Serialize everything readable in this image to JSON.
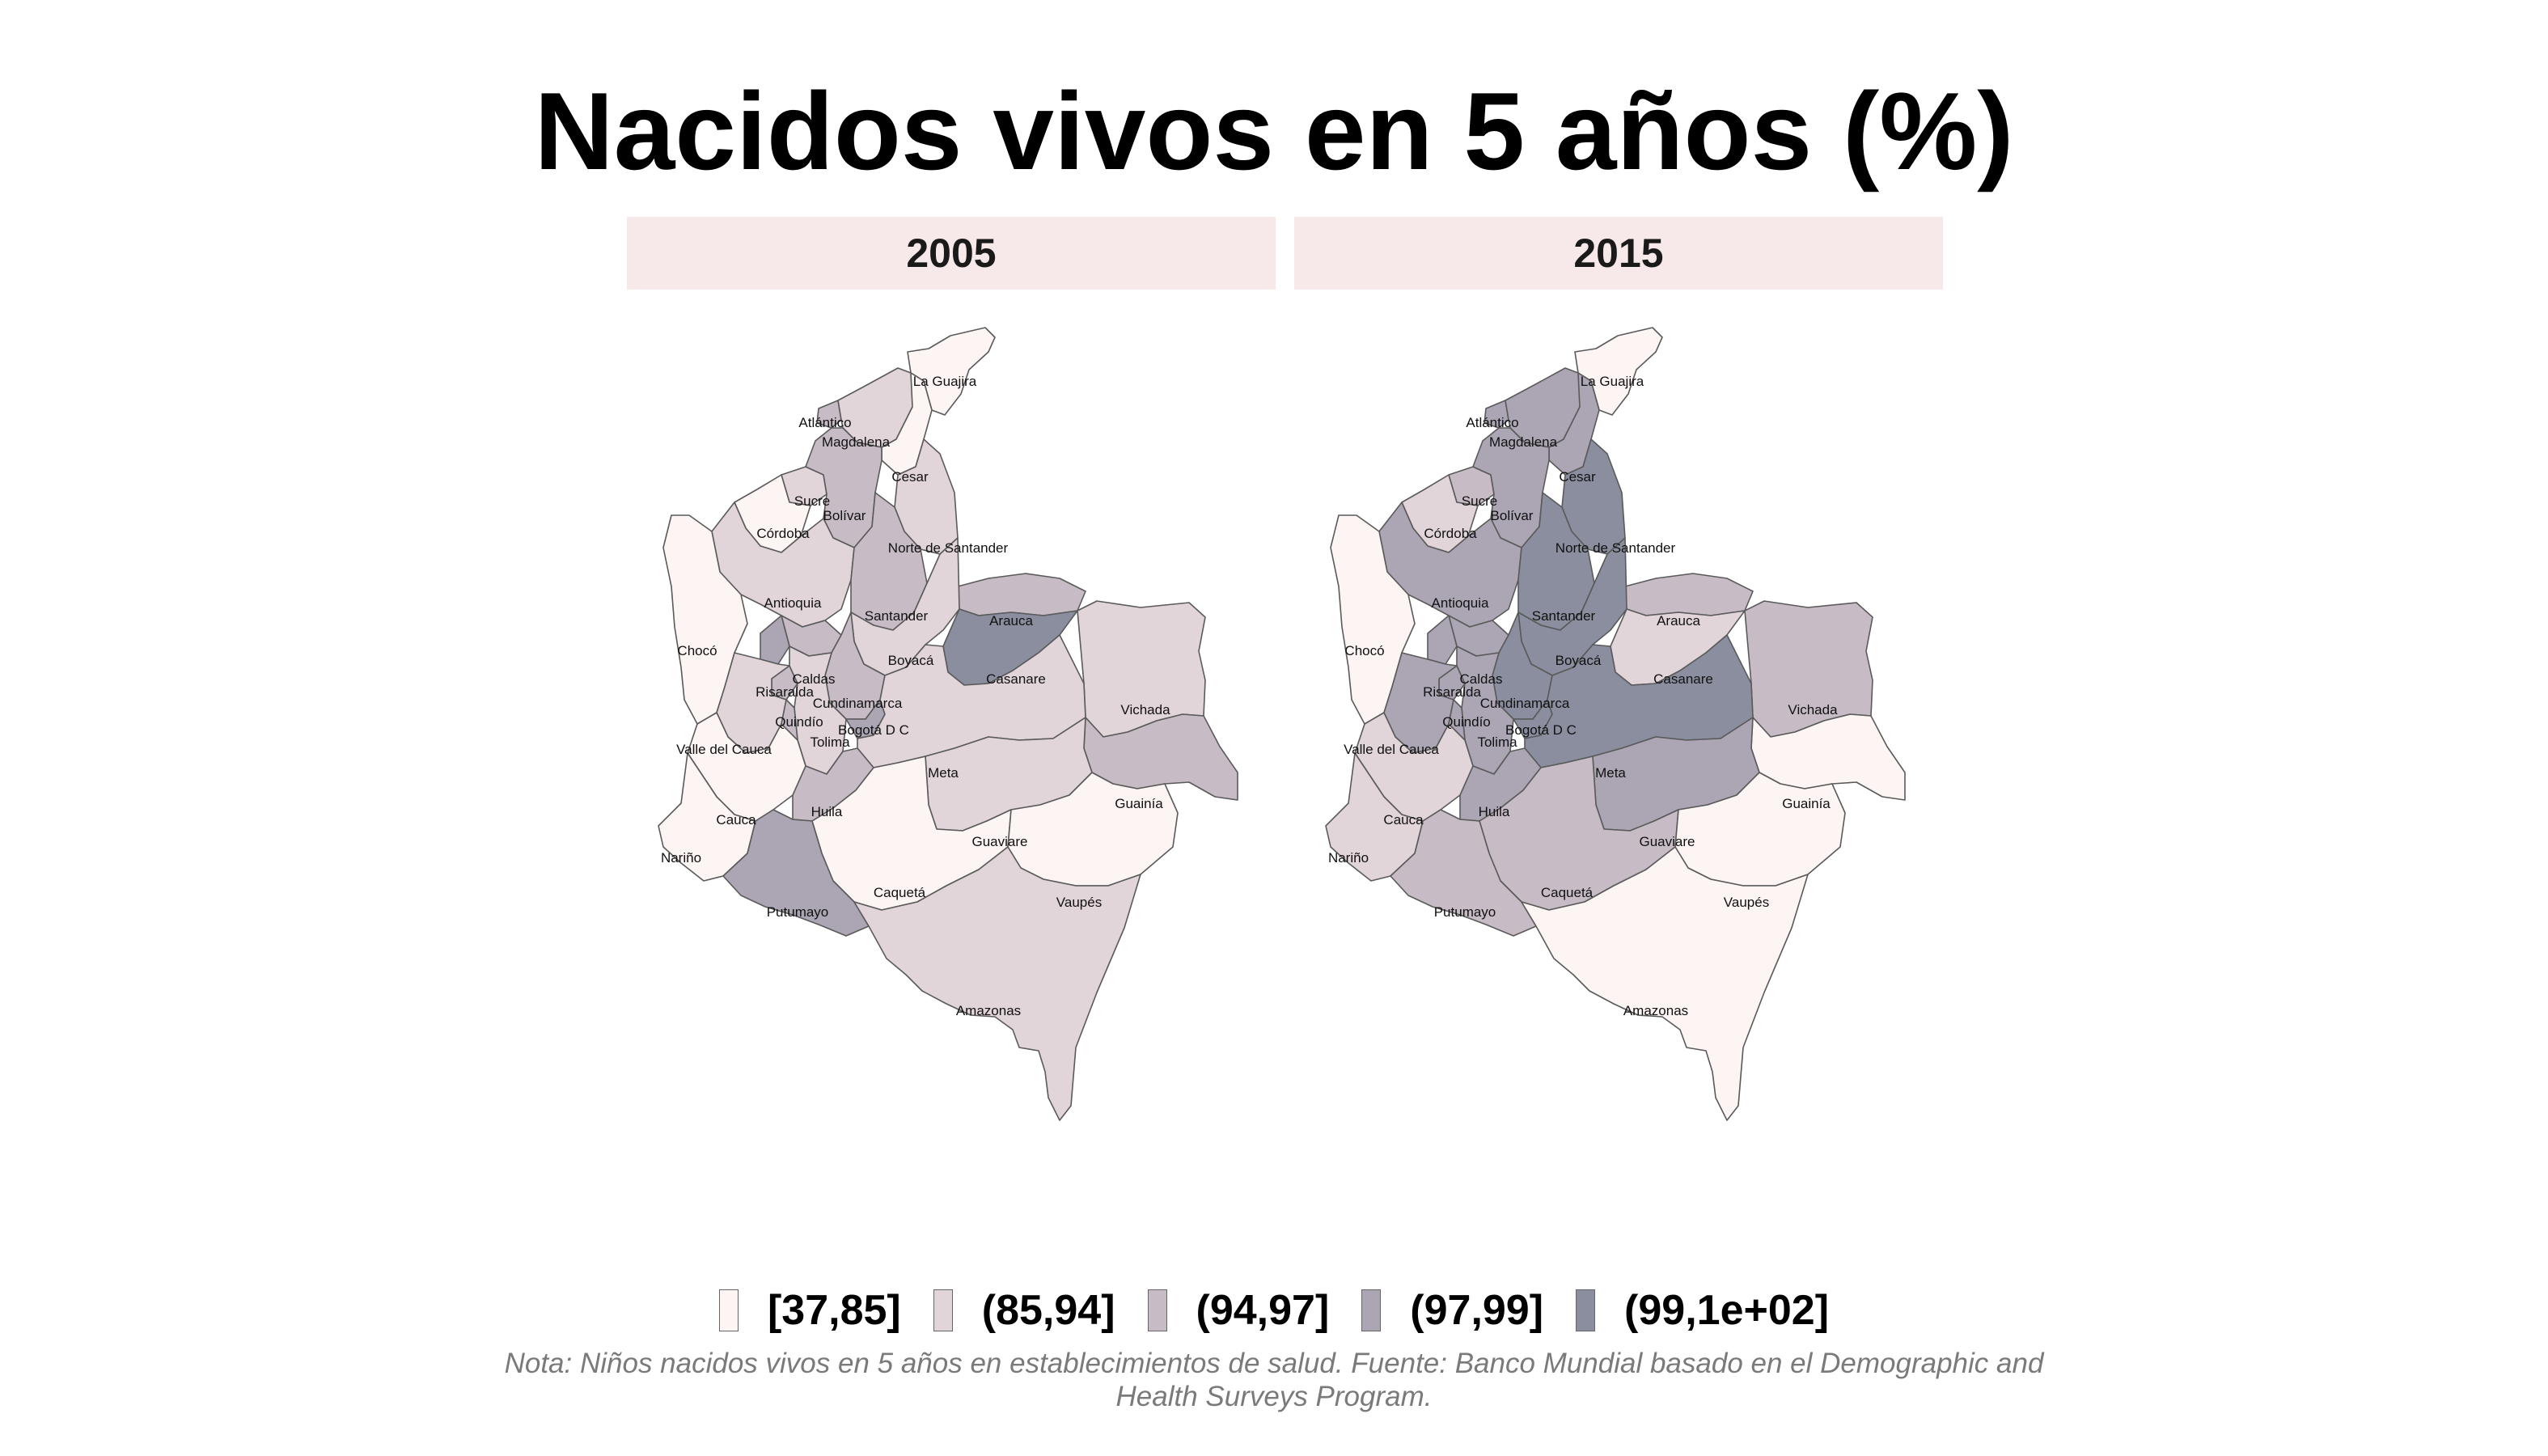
{
  "title": "Nacidos vivos en 5 años (%)",
  "note": "Nota: Niños nacidos vivos en 5 años en establecimientos de salud. Fuente: Banco Mundial basado en el Demographic and Health Surveys Program.",
  "panels": [
    {
      "year": "2005"
    },
    {
      "year": "2015"
    }
  ],
  "legend": {
    "classes": [
      {
        "label": "[37,85]",
        "color": "#fdf4f4"
      },
      {
        "label": "(85,94]",
        "color": "#e2d5d9"
      },
      {
        "label": "(94,97]",
        "color": "#c7bcc5"
      },
      {
        "label": "(97,99]",
        "color": "#aba5b4"
      },
      {
        "label": "(99,1e+02]",
        "color": "#8a8e9f"
      }
    ]
  },
  "regions": [
    {
      "name": "La Guajira",
      "class_2005": 0,
      "class_2015": 0
    },
    {
      "name": "Atlántico",
      "class_2005": 2,
      "class_2015": 3
    },
    {
      "name": "Magdalena",
      "class_2005": 1,
      "class_2015": 3
    },
    {
      "name": "Cesar",
      "class_2005": 0,
      "class_2015": 3
    },
    {
      "name": "Sucre",
      "class_2005": 1,
      "class_2015": 2
    },
    {
      "name": "Bolívar",
      "class_2005": 2,
      "class_2015": 3
    },
    {
      "name": "Córdoba",
      "class_2005": 0,
      "class_2015": 1
    },
    {
      "name": "Norte de Santander",
      "class_2005": 1,
      "class_2015": 4
    },
    {
      "name": "Antioquia",
      "class_2005": 1,
      "class_2015": 3
    },
    {
      "name": "Santander",
      "class_2005": 2,
      "class_2015": 4
    },
    {
      "name": "Arauca",
      "class_2005": 2,
      "class_2015": 2
    },
    {
      "name": "Chocó",
      "class_2005": 0,
      "class_2015": 0
    },
    {
      "name": "Boyacá",
      "class_2005": 1,
      "class_2015": 4
    },
    {
      "name": "Casanare",
      "class_2005": 4,
      "class_2015": 1
    },
    {
      "name": "Caldas",
      "class_2005": 2,
      "class_2015": 3
    },
    {
      "name": "Risaralda",
      "class_2005": 3,
      "class_2015": 3
    },
    {
      "name": "Cundinamarca",
      "class_2005": 2,
      "class_2015": 4
    },
    {
      "name": "Vichada",
      "class_2005": 1,
      "class_2015": 2
    },
    {
      "name": "Quindío",
      "class_2005": 2,
      "class_2015": 3
    },
    {
      "name": "Bogotá D C",
      "class_2005": 3,
      "class_2015": 4
    },
    {
      "name": "Tolima",
      "class_2005": 1,
      "class_2015": 3
    },
    {
      "name": "Valle del Cauca",
      "class_2005": 1,
      "class_2015": 3
    },
    {
      "name": "Meta",
      "class_2005": 1,
      "class_2015": 4
    },
    {
      "name": "Huila",
      "class_2005": 2,
      "class_2015": 3
    },
    {
      "name": "Guainía",
      "class_2005": 2,
      "class_2015": 0
    },
    {
      "name": "Cauca",
      "class_2005": 0,
      "class_2015": 1
    },
    {
      "name": "Guaviare",
      "class_2005": 1,
      "class_2015": 3
    },
    {
      "name": "Nariño",
      "class_2005": 0,
      "class_2015": 1
    },
    {
      "name": "Caquetá",
      "class_2005": 0,
      "class_2015": 2
    },
    {
      "name": "Vaupés",
      "class_2005": 0,
      "class_2015": 0
    },
    {
      "name": "Putumayo",
      "class_2005": 3,
      "class_2015": 2
    },
    {
      "name": "Amazonas",
      "class_2005": 1,
      "class_2015": 0
    }
  ]
}
